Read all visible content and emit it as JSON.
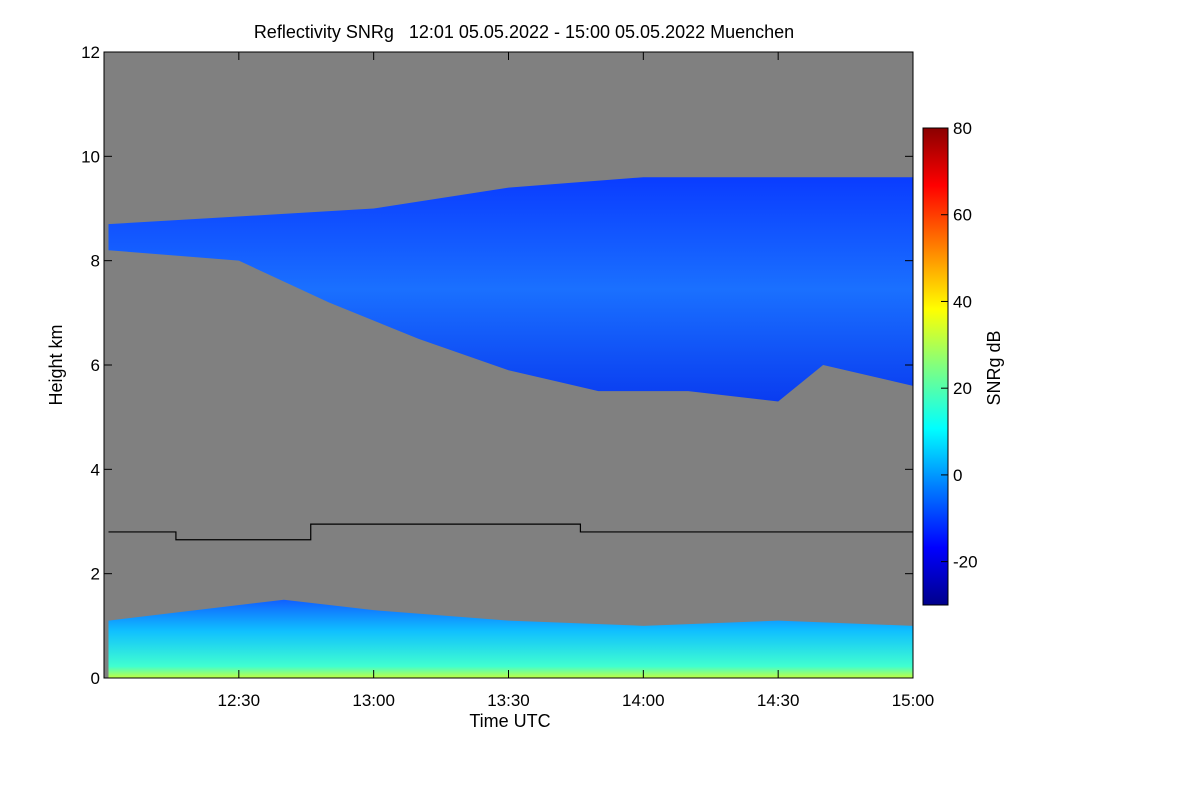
{
  "chart_data": {
    "type": "heatmap",
    "title": "Reflectivity SNRg   12:01 05.05.2022 - 15:00 05.05.2022 Muenchen",
    "xlabel": "Time UTC",
    "ylabel": "Height km",
    "colorbar_label": "SNRg dB",
    "x_range": [
      "12:01",
      "15:00"
    ],
    "x_ticks": [
      "12:30",
      "13:00",
      "13:30",
      "14:00",
      "14:30",
      "15:00"
    ],
    "ylim": [
      0,
      12
    ],
    "y_ticks": [
      "0",
      "2",
      "4",
      "6",
      "8",
      "10",
      "12"
    ],
    "colorbar_range": [
      -30,
      80
    ],
    "colorbar_ticks": [
      "-20",
      "0",
      "20",
      "40",
      "60",
      "80"
    ],
    "background_color": "#808080",
    "colormap": [
      "#00008b",
      "#0000ff",
      "#0080ff",
      "#00ffff",
      "#80ff80",
      "#ffff00",
      "#ff8000",
      "#ff0000",
      "#8b0000"
    ],
    "line_series": {
      "color": "#000000",
      "points": [
        [
          "12:01",
          2.8
        ],
        [
          "12:16",
          2.8
        ],
        [
          "12:16",
          2.65
        ],
        [
          "12:46",
          2.65
        ],
        [
          "12:46",
          2.95
        ],
        [
          "13:46",
          2.95
        ],
        [
          "13:46",
          2.8
        ],
        [
          "15:00",
          2.8
        ]
      ]
    },
    "cloud_layer": {
      "description_values": "upper cloud band, SNRg approx -20 to 0 dB",
      "top_km": [
        [
          "12:01",
          8.7
        ],
        [
          "13:00",
          9.0
        ],
        [
          "13:30",
          9.4
        ],
        [
          "14:00",
          9.6
        ],
        [
          "14:30",
          9.6
        ],
        [
          "15:00",
          9.6
        ]
      ],
      "base_km": [
        [
          "12:01",
          8.2
        ],
        [
          "12:30",
          8.0
        ],
        [
          "12:50",
          7.2
        ],
        [
          "13:10",
          6.5
        ],
        [
          "13:30",
          5.9
        ],
        [
          "13:50",
          5.5
        ],
        [
          "14:10",
          5.5
        ],
        [
          "14:30",
          5.3
        ],
        [
          "14:40",
          6.0
        ],
        [
          "15:00",
          5.6
        ]
      ]
    },
    "boundary_layer": {
      "top_km": [
        [
          "12:01",
          1.1
        ],
        [
          "12:40",
          1.5
        ],
        [
          "13:00",
          1.3
        ],
        [
          "13:30",
          1.1
        ],
        [
          "14:00",
          1.0
        ],
        [
          "14:30",
          1.1
        ],
        [
          "15:00",
          1.0
        ]
      ]
    }
  }
}
